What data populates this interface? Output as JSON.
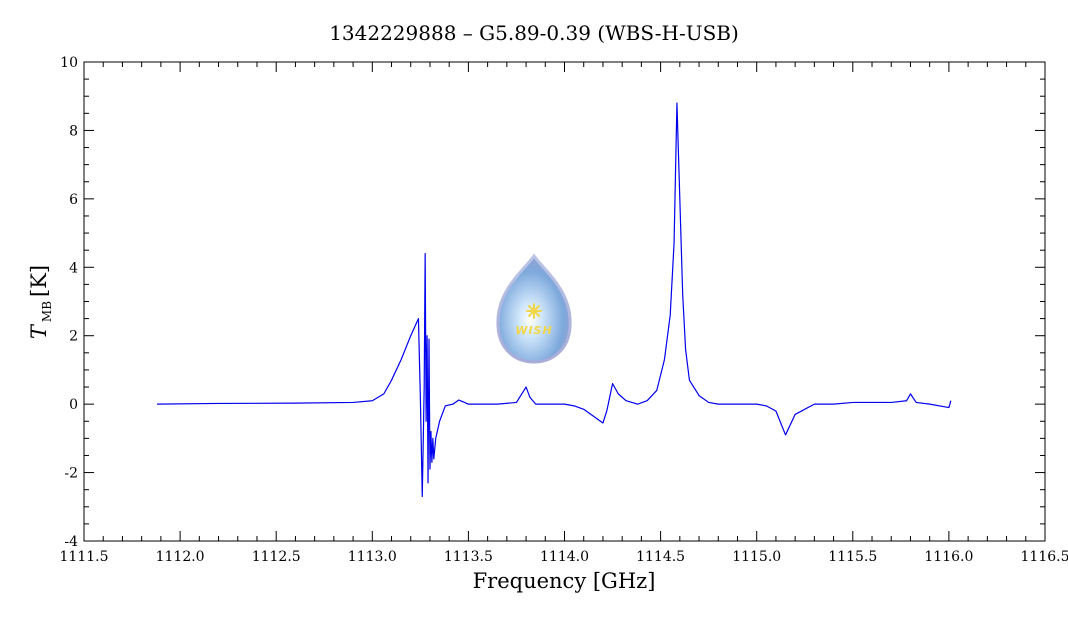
{
  "chart_data": {
    "type": "line",
    "title": "1342229888 – G5.89-0.39 (WBS-H-USB)",
    "xlabel": "Frequency [GHz]",
    "ylabel_main": "T",
    "ylabel_sub": "MB",
    "ylabel_unit": "[K]",
    "xlim": [
      1111.5,
      1116.5
    ],
    "ylim": [
      -4,
      10
    ],
    "x_ticks": [
      "1111.5",
      "1112.0",
      "1112.5",
      "1113.0",
      "1113.5",
      "1114.0",
      "1114.5",
      "1115.0",
      "1115.5",
      "1116.0",
      "1116.5"
    ],
    "y_ticks": [
      "-4",
      "-2",
      "0",
      "2",
      "4",
      "6",
      "8",
      "10"
    ],
    "grid": false,
    "series": [
      {
        "color": "#0000ee",
        "x": [
          1111.88,
          1112.2,
          1112.6,
          1112.9,
          1113.0,
          1113.06,
          1113.1,
          1113.15,
          1113.2,
          1113.24,
          1113.25,
          1113.26,
          1113.27,
          1113.275,
          1113.28,
          1113.285,
          1113.29,
          1113.295,
          1113.3,
          1113.305,
          1113.31,
          1113.315,
          1113.32,
          1113.33,
          1113.35,
          1113.38,
          1113.42,
          1113.45,
          1113.48,
          1113.5,
          1113.55,
          1113.65,
          1113.75,
          1113.8,
          1113.82,
          1113.85,
          1113.9,
          1114.0,
          1114.05,
          1114.1,
          1114.15,
          1114.2,
          1114.22,
          1114.25,
          1114.28,
          1114.32,
          1114.38,
          1114.43,
          1114.48,
          1114.52,
          1114.55,
          1114.57,
          1114.585,
          1114.6,
          1114.615,
          1114.63,
          1114.65,
          1114.7,
          1114.75,
          1114.8,
          1114.9,
          1115.0,
          1115.05,
          1115.1,
          1115.15,
          1115.2,
          1115.3,
          1115.4,
          1115.5,
          1115.6,
          1115.7,
          1115.78,
          1115.8,
          1115.83,
          1115.9,
          1116.0,
          1116.01
        ],
        "y": [
          0.0,
          0.02,
          0.03,
          0.05,
          0.1,
          0.3,
          0.7,
          1.3,
          2.0,
          2.5,
          0.2,
          -2.7,
          0.5,
          4.4,
          -0.5,
          2.0,
          -2.3,
          1.9,
          -1.9,
          -0.8,
          -1.7,
          -1.0,
          -1.6,
          -1.0,
          -0.5,
          -0.05,
          0.0,
          0.12,
          0.05,
          0.0,
          0.0,
          0.0,
          0.05,
          0.5,
          0.2,
          0.0,
          0.0,
          0.0,
          -0.05,
          -0.15,
          -0.35,
          -0.55,
          -0.2,
          0.6,
          0.3,
          0.1,
          0.0,
          0.1,
          0.4,
          1.3,
          2.6,
          4.7,
          8.8,
          6.0,
          3.2,
          1.6,
          0.7,
          0.25,
          0.05,
          0.0,
          0.0,
          0.0,
          -0.05,
          -0.2,
          -0.9,
          -0.3,
          0.0,
          0.0,
          0.05,
          0.05,
          0.05,
          0.1,
          0.3,
          0.05,
          0.0,
          -0.1,
          0.1
        ]
      }
    ]
  },
  "logo": {
    "text": "WISH"
  }
}
